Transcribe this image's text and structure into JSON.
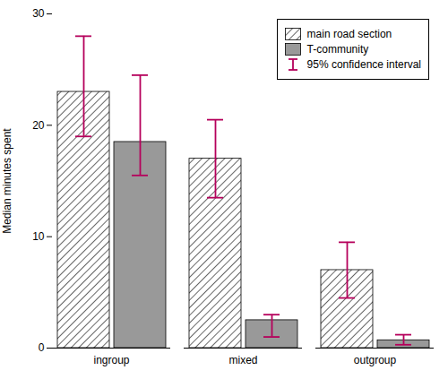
{
  "chart_data": {
    "type": "bar",
    "categories": [
      "ingroup",
      "mixed",
      "outgroup"
    ],
    "ylabel": "Median minutes spent",
    "ylim": [
      0,
      30
    ],
    "yticks": [
      0,
      10,
      20,
      30
    ],
    "grid": false,
    "legend": "upper right",
    "series": [
      {
        "name": "main road section",
        "color": "white",
        "values": [
          23.0,
          17.0,
          7.0
        ],
        "ci_low": [
          19.0,
          13.5,
          4.5
        ],
        "ci_high": [
          28.0,
          20.5,
          9.5
        ]
      },
      {
        "name": "T-community",
        "color": "#999999",
        "values": [
          18.5,
          2.5,
          0.7
        ],
        "ci_low": [
          15.5,
          1.0,
          0.3
        ],
        "ci_high": [
          24.5,
          3.0,
          1.2
        ]
      }
    ],
    "error_bars": {
      "name": "95% confidence interval",
      "color": "#b5005b"
    }
  }
}
